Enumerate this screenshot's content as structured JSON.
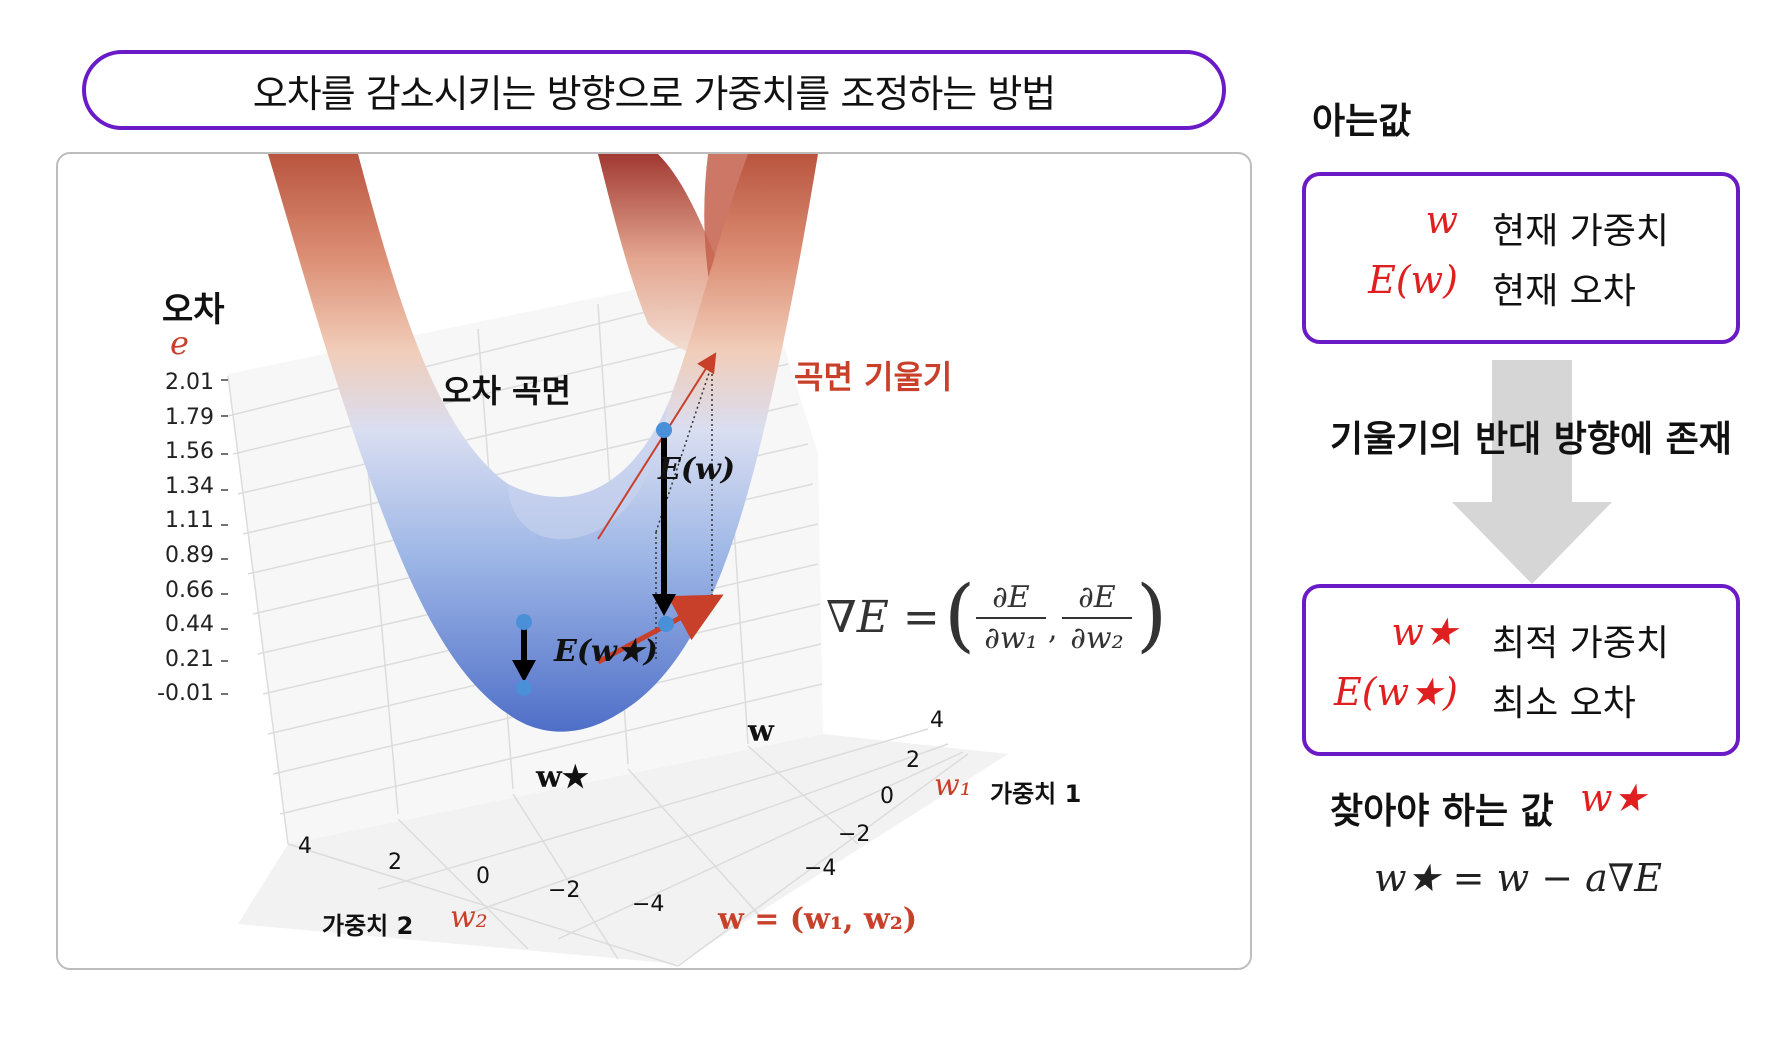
{
  "title": "오차를 감소시키는 방향으로 가중치를 조정하는 방법",
  "figure": {
    "z_axis_label": "오차",
    "z_axis_symbol": "e",
    "z_ticks": [
      "2.01",
      "1.79",
      "1.56",
      "1.34",
      "1.11",
      "0.89",
      "0.66",
      "0.44",
      "0.21",
      "-0.01"
    ],
    "surface_label": "오차 곡면",
    "gradient_label": "곡면 기울기",
    "e_w_label": "E(w)",
    "e_wstar_label": "E(w★)",
    "w_label": "w",
    "wstar_label": "w★",
    "gradient_formula_lhs": "∇E =",
    "gradient_formula_frac1_num": "∂E",
    "gradient_formula_frac1_den": "∂w₁",
    "gradient_formula_frac2_num": "∂E",
    "gradient_formula_frac2_den": "∂w₂",
    "w1_ticks": [
      "4",
      "2",
      "0",
      "−2",
      "−4"
    ],
    "w2_ticks": [
      "4",
      "2",
      "0",
      "−2",
      "−4"
    ],
    "w1_axis_label": "가중치 1",
    "w1_symbol": "w₁",
    "w2_axis_label": "가중치 2",
    "w2_symbol": "w₂",
    "w_vector_label": "w = (w₁, w₂)"
  },
  "right_panel": {
    "known_header": "아는값",
    "known_items": [
      {
        "symbol": "w",
        "desc": "현재 가중치"
      },
      {
        "symbol": "E(w)",
        "desc": "현재 오차"
      }
    ],
    "arrow_label": "기울기의 반대 방향에 존재",
    "target_items": [
      {
        "symbol": "w★",
        "desc": "최적 가중치"
      },
      {
        "symbol": "E(w★)",
        "desc": "최소 오차"
      }
    ],
    "find_label": "찾아야 하는 값",
    "find_symbol": "w★",
    "update_formula": "w★ = w − a∇E"
  },
  "colors": {
    "accent_purple": "#6a1bc7",
    "symbol_red": "#e02020",
    "gradient_red": "#c8402a",
    "point_blue": "#4a90d9"
  }
}
